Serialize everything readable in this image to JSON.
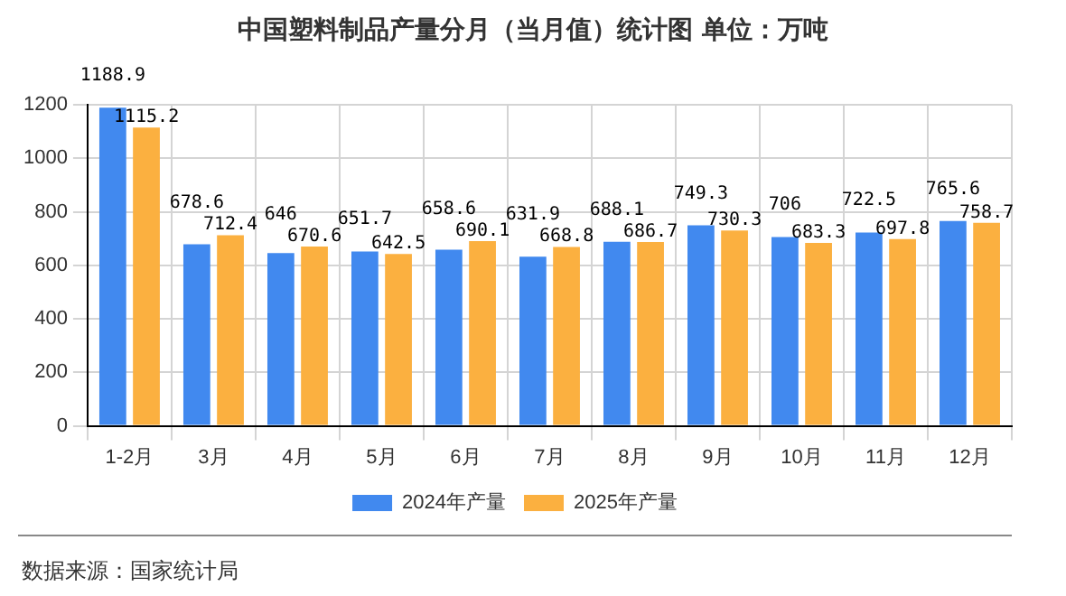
{
  "chart_data": {
    "type": "bar",
    "title": "中国塑料制品产量分月（当月值）统计图 单位：万吨",
    "categories": [
      "1-2月",
      "3月",
      "4月",
      "5月",
      "6月",
      "7月",
      "8月",
      "9月",
      "10月",
      "11月",
      "12月"
    ],
    "series": [
      {
        "name": "2024年产量",
        "color": "#4189ef",
        "values": [
          1188.9,
          678.6,
          646,
          651.7,
          658.6,
          631.9,
          688.1,
          749.3,
          706,
          722.5,
          765.6
        ]
      },
      {
        "name": "2025年产量",
        "color": "#fbb040",
        "values": [
          1115.2,
          712.4,
          670.6,
          642.5,
          690.1,
          668.8,
          686.7,
          730.3,
          683.3,
          697.8,
          758.7
        ]
      }
    ],
    "ylim": [
      0,
      1200
    ],
    "yticks": [
      0,
      200,
      400,
      600,
      800,
      1000,
      1200
    ],
    "grid": true,
    "legend": "bottom",
    "data_labels": true,
    "annotations": [
      "数据来源：国家统计局"
    ]
  }
}
